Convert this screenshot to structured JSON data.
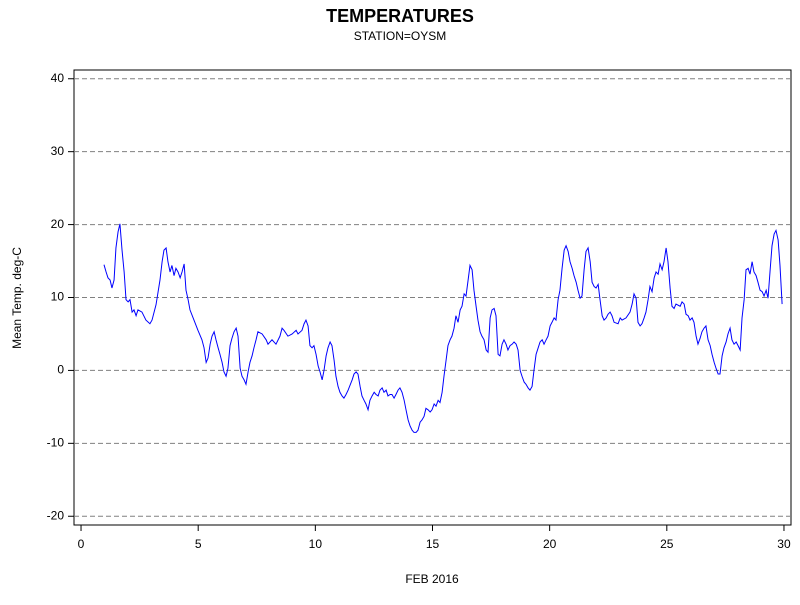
{
  "chart_data": {
    "type": "line",
    "title": "TEMPERATURES",
    "subtitle": "STATION=OYSM",
    "x_label": "FEB 2016",
    "y_label": "Mean Temp. deg-C",
    "xlim": [
      -0.3,
      30.3
    ],
    "xticks": [
      0,
      5,
      10,
      15,
      20,
      25,
      30
    ],
    "ylim": [
      -21.2,
      41.2
    ],
    "yticks": [
      -20,
      -10,
      0,
      10,
      20,
      30,
      40
    ],
    "grid": true,
    "series": [
      {
        "color": "#0000ff",
        "x": [
          0.98,
          1.07,
          1.15,
          1.24,
          1.32,
          1.41,
          1.49,
          1.58,
          1.66,
          1.75,
          1.84,
          1.92,
          2.01,
          2.09,
          2.18,
          2.26,
          2.35,
          2.43,
          2.6,
          2.77,
          2.94,
          3.03,
          3.2,
          3.29,
          3.37,
          3.46,
          3.54,
          3.63,
          3.71,
          3.8,
          3.88,
          3.97,
          4.05,
          4.14,
          4.23,
          4.31,
          4.4,
          4.48,
          4.57,
          4.65,
          4.82,
          4.99,
          5.16,
          5.25,
          5.34,
          5.42,
          5.51,
          5.59,
          5.68,
          5.76,
          5.85,
          5.93,
          6.02,
          6.1,
          6.19,
          6.27,
          6.36,
          6.44,
          6.53,
          6.62,
          6.7,
          6.79,
          6.87,
          6.96,
          7.04,
          7.13,
          7.21,
          7.3,
          7.38,
          7.47,
          7.55,
          7.73,
          7.9,
          7.98,
          8.15,
          8.32,
          8.49,
          8.58,
          8.66,
          8.83,
          9.01,
          9.18,
          9.26,
          9.43,
          9.52,
          9.6,
          9.69,
          9.77,
          9.86,
          9.94,
          10.03,
          10.12,
          10.2,
          10.29,
          10.37,
          10.46,
          10.54,
          10.63,
          10.71,
          10.8,
          10.88,
          10.97,
          11.05,
          11.14,
          11.22,
          11.31,
          11.4,
          11.57,
          11.65,
          11.74,
          11.82,
          11.91,
          11.99,
          12.08,
          12.16,
          12.25,
          12.33,
          12.42,
          12.51,
          12.59,
          12.68,
          12.76,
          12.85,
          12.93,
          13.02,
          13.1,
          13.19,
          13.27,
          13.36,
          13.44,
          13.53,
          13.61,
          13.7,
          13.79,
          13.87,
          13.96,
          14.04,
          14.13,
          14.21,
          14.3,
          14.38,
          14.47,
          14.55,
          14.64,
          14.72,
          14.81,
          14.9,
          14.98,
          15.07,
          15.15,
          15.24,
          15.32,
          15.41,
          15.49,
          15.58,
          15.66,
          15.75,
          15.83,
          15.92,
          16.0,
          16.09,
          16.18,
          16.26,
          16.35,
          16.43,
          16.52,
          16.6,
          16.69,
          16.77,
          16.86,
          16.94,
          17.03,
          17.11,
          17.2,
          17.29,
          17.37,
          17.46,
          17.54,
          17.63,
          17.71,
          17.8,
          17.88,
          17.97,
          18.05,
          18.14,
          18.22,
          18.31,
          18.4,
          18.48,
          18.57,
          18.65,
          18.74,
          18.82,
          18.91,
          18.99,
          19.08,
          19.16,
          19.25,
          19.33,
          19.42,
          19.51,
          19.59,
          19.68,
          19.76,
          19.85,
          19.93,
          20.02,
          20.1,
          20.19,
          20.27,
          20.36,
          20.44,
          20.53,
          20.62,
          20.7,
          20.79,
          20.87,
          20.96,
          21.04,
          21.13,
          21.21,
          21.3,
          21.38,
          21.47,
          21.55,
          21.64,
          21.73,
          21.81,
          21.9,
          21.98,
          22.07,
          22.15,
          22.24,
          22.32,
          22.41,
          22.49,
          22.58,
          22.66,
          22.75,
          22.92,
          23.01,
          23.09,
          23.26,
          23.43,
          23.52,
          23.6,
          23.69,
          23.77,
          23.86,
          23.94,
          24.03,
          24.11,
          24.2,
          24.28,
          24.37,
          24.46,
          24.54,
          24.63,
          24.71,
          24.8,
          24.88,
          24.97,
          25.05,
          25.14,
          25.22,
          25.31,
          25.39,
          25.57,
          25.65,
          25.74,
          25.82,
          25.91,
          25.99,
          26.08,
          26.16,
          26.25,
          26.33,
          26.42,
          26.5,
          26.59,
          26.67,
          26.76,
          26.85,
          26.93,
          27.02,
          27.1,
          27.19,
          27.27,
          27.36,
          27.44,
          27.53,
          27.61,
          27.7,
          27.78,
          27.87,
          27.96,
          28.04,
          28.13,
          28.21,
          28.3,
          28.38,
          28.47,
          28.55,
          28.64,
          28.72,
          28.81,
          28.89,
          28.98,
          29.07,
          29.15,
          29.24,
          29.32,
          29.41,
          29.49,
          29.58,
          29.66,
          29.75,
          29.83,
          29.92
        ],
        "values": [
          14.5,
          13.5,
          12.7,
          12.4,
          11.3,
          12.4,
          16.8,
          19,
          20.1,
          16.5,
          13.5,
          9.7,
          9.4,
          9.7,
          8,
          8.3,
          7.5,
          8.3,
          8,
          6.9,
          6.4,
          6.9,
          9,
          10.8,
          12.4,
          14.9,
          16.5,
          16.8,
          14.9,
          13.5,
          14.4,
          13,
          14,
          13.5,
          12.7,
          13.5,
          14.6,
          11,
          9.7,
          8.3,
          6.9,
          5.5,
          4.2,
          3.1,
          1.1,
          1.7,
          3.6,
          4.7,
          5.3,
          4.2,
          3.1,
          2.2,
          1.1,
          -0.2,
          -0.8,
          0.3,
          3.4,
          4.4,
          5.3,
          5.8,
          4.7,
          0.3,
          -0.8,
          -1.3,
          -1.9,
          -0.2,
          1.1,
          2,
          3.1,
          4.2,
          5.3,
          5,
          4.2,
          3.6,
          4.2,
          3.6,
          4.7,
          5.8,
          5.5,
          4.7,
          5,
          5.5,
          5,
          5.5,
          6.4,
          6.9,
          6.1,
          3.4,
          3.1,
          3.4,
          2.2,
          0.6,
          -0.2,
          -1.3,
          0,
          2,
          3.1,
          3.9,
          3.4,
          1.4,
          -0.8,
          -2.2,
          -3,
          -3.5,
          -3.8,
          -3.3,
          -2.7,
          -1.3,
          -0.5,
          -0.2,
          -0.5,
          -2.2,
          -3.5,
          -4.1,
          -4.6,
          -5.4,
          -4.1,
          -3.5,
          -3,
          -3.3,
          -3.5,
          -2.7,
          -2.4,
          -3,
          -2.7,
          -3.5,
          -3.3,
          -3.3,
          -3.8,
          -3.3,
          -2.7,
          -2.4,
          -3,
          -4.1,
          -5.4,
          -6.8,
          -7.6,
          -8.2,
          -8.5,
          -8.5,
          -8.2,
          -7.1,
          -6.8,
          -6.3,
          -5.2,
          -5.4,
          -5.7,
          -5.4,
          -4.6,
          -4.9,
          -4.1,
          -4.4,
          -3,
          -0.8,
          1.4,
          3.4,
          4.2,
          4.7,
          5.8,
          7.5,
          6.6,
          8.3,
          8.8,
          10.5,
          10.2,
          12.4,
          14.4,
          13.8,
          11,
          8.8,
          6.9,
          5.3,
          4.7,
          4.2,
          2.8,
          2.5,
          7.2,
          8.3,
          8.5,
          7.5,
          2.2,
          2,
          3.6,
          4.2,
          3.6,
          2.8,
          3.4,
          3.6,
          3.9,
          3.6,
          2.8,
          0,
          -0.8,
          -1.6,
          -1.9,
          -2.4,
          -2.7,
          -2.2,
          0,
          2.2,
          3.1,
          3.9,
          4.2,
          3.6,
          4.2,
          4.7,
          6.1,
          6.6,
          7.2,
          6.9,
          9.7,
          11,
          14,
          16.5,
          17.1,
          16.3,
          14.9,
          14,
          13,
          12.1,
          11,
          9.9,
          10.2,
          13.8,
          16.3,
          16.8,
          14.9,
          12.1,
          11.5,
          11.3,
          11.8,
          9.7,
          7.5,
          6.9,
          7.2,
          7.7,
          8,
          7.5,
          6.6,
          6.4,
          7.2,
          6.9,
          7.2,
          8,
          9.1,
          10.5,
          9.9,
          6.6,
          6.1,
          6.4,
          7.2,
          8,
          9.7,
          11.5,
          10.8,
          12.7,
          13.5,
          13.2,
          14.6,
          13.8,
          14.9,
          16.8,
          14.9,
          11.3,
          8.8,
          8.5,
          9.1,
          8.8,
          9.4,
          9.1,
          7.7,
          7.5,
          6.9,
          7.2,
          6.6,
          4.7,
          3.6,
          4.4,
          5.3,
          5.8,
          6.1,
          4.2,
          3.4,
          2.2,
          1.1,
          0.3,
          -0.5,
          -0.5,
          2,
          3.1,
          3.9,
          5,
          5.8,
          4.2,
          3.6,
          3.9,
          3.4,
          2.8,
          7.2,
          9.7,
          13.8,
          14,
          13.2,
          14.9,
          13.5,
          13,
          12.1,
          11,
          10.8,
          10.2,
          11,
          9.9,
          13.8,
          17.1,
          18.7,
          19.2,
          17.9,
          14.4,
          9.1
        ]
      }
    ]
  }
}
